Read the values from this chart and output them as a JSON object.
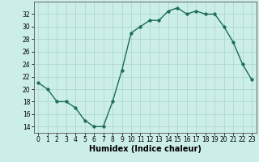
{
  "x": [
    0,
    1,
    2,
    3,
    4,
    5,
    6,
    7,
    8,
    9,
    10,
    11,
    12,
    13,
    14,
    15,
    16,
    17,
    18,
    19,
    20,
    21,
    22,
    23
  ],
  "y": [
    21,
    20,
    18,
    18,
    17,
    15,
    14,
    14,
    18,
    23,
    29,
    30,
    31,
    31,
    32.5,
    33,
    32,
    32.5,
    32,
    32,
    30,
    27.5,
    24,
    21.5
  ],
  "line_color": "#1a6b5a",
  "marker": "o",
  "marker_size": 2.5,
  "bg_color": "#cceee8",
  "grid_color": "#aad4ce",
  "xlabel": "Humidex (Indice chaleur)",
  "xlabel_fontsize": 7,
  "xlim": [
    -0.5,
    23.5
  ],
  "ylim": [
    13,
    34
  ],
  "yticks": [
    14,
    16,
    18,
    20,
    22,
    24,
    26,
    28,
    30,
    32
  ],
  "xticks": [
    0,
    1,
    2,
    3,
    4,
    5,
    6,
    7,
    8,
    9,
    10,
    11,
    12,
    13,
    14,
    15,
    16,
    17,
    18,
    19,
    20,
    21,
    22,
    23
  ],
  "tick_fontsize": 5.5,
  "line_width": 1.0
}
